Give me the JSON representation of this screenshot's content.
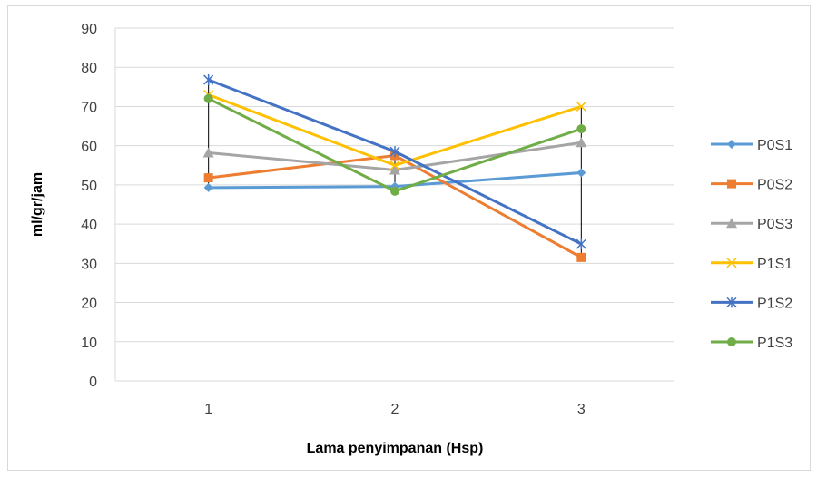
{
  "chart_data": {
    "type": "line",
    "title": "",
    "xlabel": "Lama penyimpanan (Hsp)",
    "ylabel": "ml/gr/jam",
    "categories": [
      "1",
      "2",
      "3"
    ],
    "ylim": [
      0,
      90
    ],
    "yticks": [
      "0",
      "10",
      "20",
      "30",
      "40",
      "50",
      "60",
      "70",
      "80",
      "90"
    ],
    "grid": true,
    "legend_position": "right",
    "high_low_lines": true,
    "series": [
      {
        "name": "P0S1",
        "color": "#5B9BD5",
        "marker": "diamond",
        "values": [
          49.3,
          49.6,
          53.1
        ]
      },
      {
        "name": "P0S2",
        "color": "#ED7D31",
        "marker": "square",
        "values": [
          51.8,
          57.5,
          31.5
        ]
      },
      {
        "name": "P0S3",
        "color": "#A5A5A5",
        "marker": "triangle",
        "values": [
          58.2,
          53.8,
          60.8
        ]
      },
      {
        "name": "P1S1",
        "color": "#FFC000",
        "marker": "x",
        "values": [
          73.0,
          55.0,
          70.0
        ]
      },
      {
        "name": "P1S2",
        "color": "#4472C4",
        "marker": "star",
        "values": [
          76.8,
          58.5,
          34.9
        ]
      },
      {
        "name": "P1S3",
        "color": "#70AD47",
        "marker": "circle",
        "values": [
          72.0,
          48.4,
          64.3
        ]
      }
    ]
  }
}
